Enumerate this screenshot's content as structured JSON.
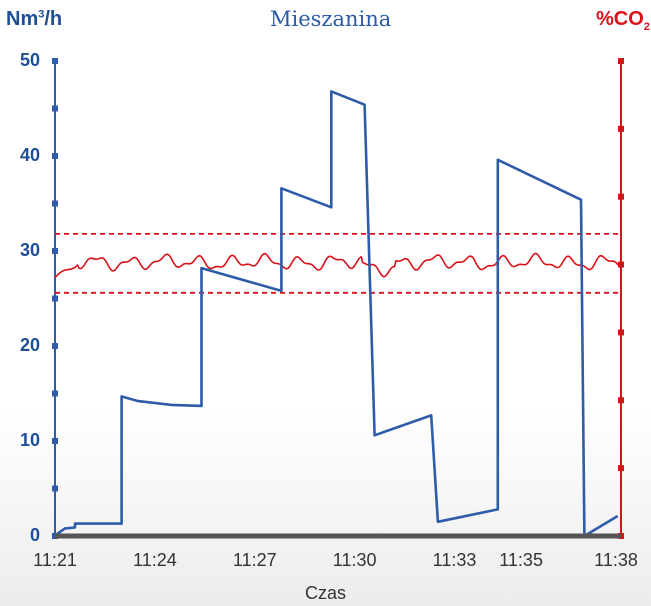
{
  "chart_data": {
    "type": "line",
    "title": "Mieszanina",
    "xlabel": "Czas",
    "ylabel_left": {
      "base": "Nm",
      "sup": "3",
      "rest": "/h"
    },
    "ylabel_right": {
      "base": "%CO",
      "sub": "2"
    },
    "ylim": [
      0,
      50
    ],
    "yticks": [
      "0",
      "10",
      "20",
      "30",
      "40",
      "50"
    ],
    "xlim": [
      0,
      17
    ],
    "xticks": [
      {
        "t": 0,
        "label": "11:21"
      },
      {
        "t": 3,
        "label": "11:24"
      },
      {
        "t": 6,
        "label": "11:27"
      },
      {
        "t": 9,
        "label": "11:30"
      },
      {
        "t": 12,
        "label": "11:33"
      },
      {
        "t": 14,
        "label": "11:35"
      },
      {
        "t": 17,
        "label": "11:38"
      }
    ],
    "grid": false,
    "colors": {
      "flow": "#2e5ca8",
      "co2": "#d9121a",
      "baseline": "#555555",
      "axis_left": "#2e5ca8",
      "axis_right": "#d9121a"
    },
    "series": [
      {
        "key": "flow",
        "axis": "left",
        "points": [
          [
            0.0,
            0
          ],
          [
            0.1,
            0.3
          ],
          [
            0.3,
            0.8
          ],
          [
            0.6,
            0.9
          ],
          [
            0.6,
            1.3
          ],
          [
            2.0,
            1.3
          ],
          [
            2.0,
            14.7
          ],
          [
            2.5,
            14.2
          ],
          [
            3.5,
            13.8
          ],
          [
            4.4,
            13.7
          ],
          [
            4.4,
            28.2
          ],
          [
            6.8,
            25.8
          ],
          [
            6.8,
            36.6
          ],
          [
            8.3,
            34.6
          ],
          [
            8.3,
            46.8
          ],
          [
            9.3,
            45.4
          ],
          [
            9.6,
            10.6
          ],
          [
            11.3,
            12.7
          ],
          [
            11.5,
            1.5
          ],
          [
            13.3,
            2.8
          ],
          [
            13.3,
            39.6
          ],
          [
            15.8,
            35.4
          ],
          [
            15.9,
            0
          ],
          [
            16.9,
            2.1
          ]
        ]
      },
      {
        "key": "co2",
        "axis": "right",
        "shape": "wavy"
      }
    ],
    "reference_lines": [
      {
        "axis": "left",
        "y": 31.8,
        "style": "dashed"
      },
      {
        "axis": "left",
        "y": 25.6,
        "style": "dashed"
      }
    ]
  }
}
